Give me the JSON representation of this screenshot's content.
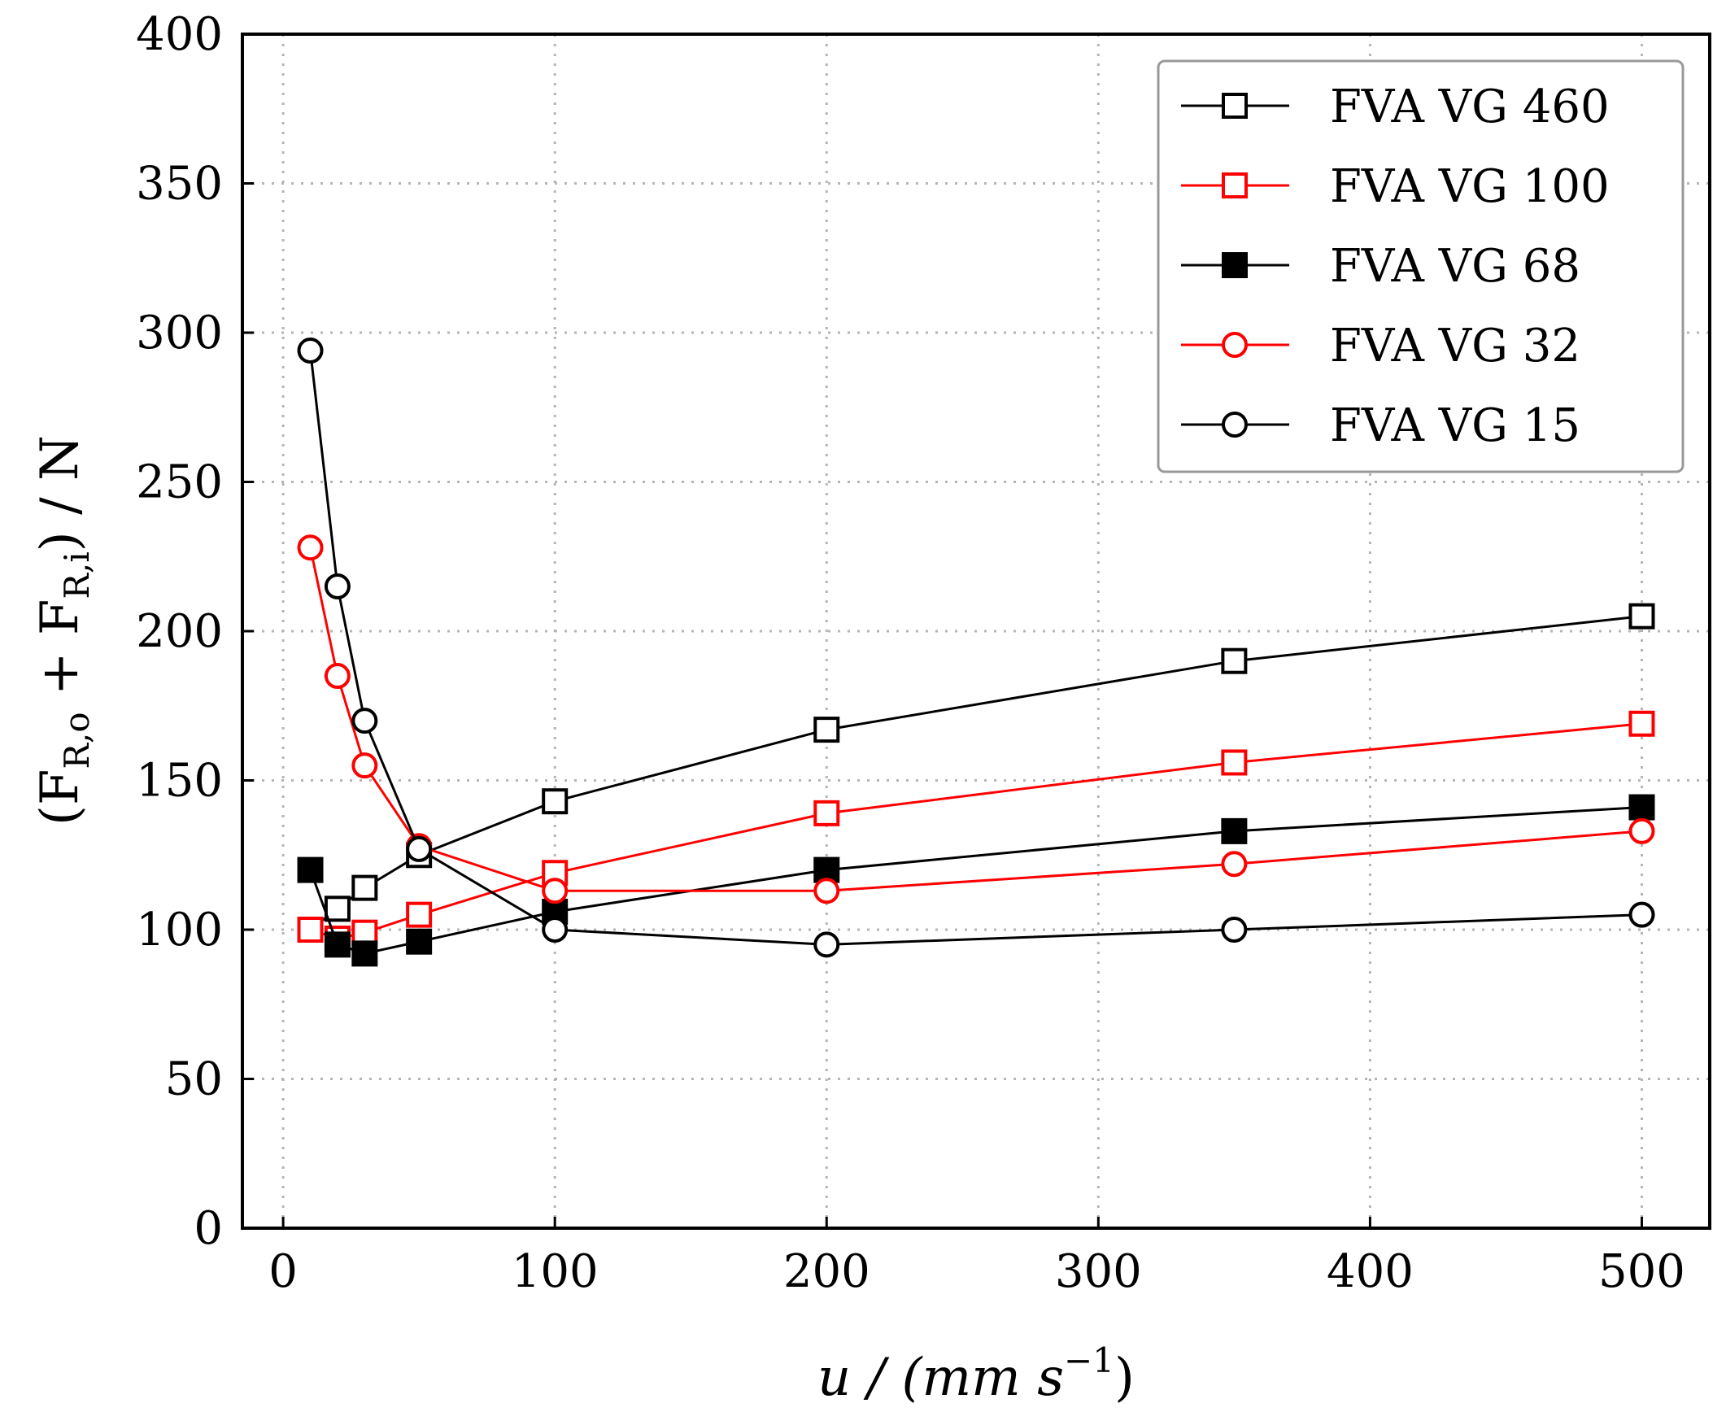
{
  "chart_data": {
    "type": "line",
    "title": "",
    "xlabel": "u / (mm s",
    "xlabel_exp": "−1",
    "xlabel_close": ")",
    "ylabel_parts": {
      "open": "(F",
      "sub1": "R,o",
      "plus": " + F",
      "sub2": "R,i",
      "close": ") / N"
    },
    "xlim": [
      -15,
      525
    ],
    "ylim": [
      0,
      400
    ],
    "xticks": [
      0,
      100,
      200,
      300,
      400,
      500
    ],
    "yticks": [
      0,
      50,
      100,
      150,
      200,
      250,
      300,
      350,
      400
    ],
    "xtick_labels": [
      "0",
      "100",
      "200",
      "300",
      "400",
      "500"
    ],
    "ytick_labels": [
      "0",
      "50",
      "100",
      "150",
      "200",
      "250",
      "300",
      "350",
      "400"
    ],
    "grid": true,
    "legend_position": "top-right",
    "x": [
      10,
      20,
      30,
      50,
      100,
      200,
      350,
      500
    ],
    "series": [
      {
        "name": "FVA VG 460",
        "color": "#000000",
        "marker": "square",
        "filled": false,
        "values": [
          100,
          107,
          114,
          125,
          143,
          167,
          190,
          205
        ]
      },
      {
        "name": "FVA VG 100",
        "color": "#ff0000",
        "marker": "square",
        "filled": false,
        "values": [
          100,
          97,
          99,
          105,
          119,
          139,
          156,
          169
        ]
      },
      {
        "name": "FVA VG 68",
        "color": "#000000",
        "marker": "square",
        "filled": true,
        "values": [
          120,
          95,
          92,
          96,
          106,
          120,
          133,
          141
        ]
      },
      {
        "name": "FVA VG 32",
        "color": "#ff0000",
        "marker": "circle",
        "filled": false,
        "values": [
          228,
          185,
          155,
          128,
          113,
          113,
          122,
          133
        ]
      },
      {
        "name": "FVA VG 15",
        "color": "#000000",
        "marker": "circle",
        "filled": false,
        "values": [
          294,
          215,
          170,
          127,
          100,
          95,
          100,
          105
        ]
      }
    ]
  }
}
